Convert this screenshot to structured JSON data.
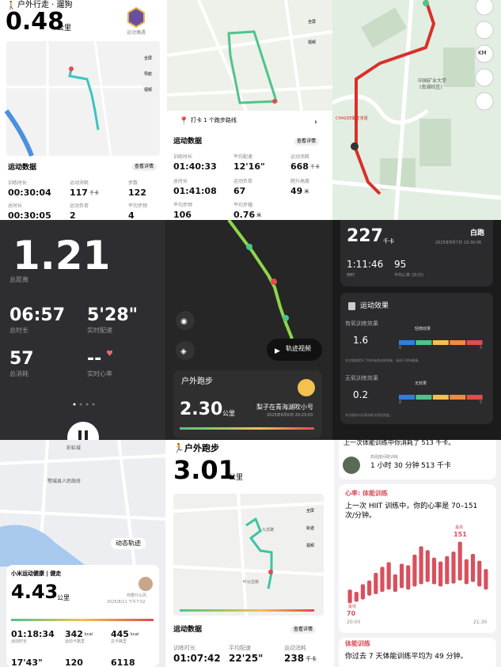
{
  "p1": {
    "title": "户外行走 · 遛狗",
    "distance": "0.48",
    "unit": "公里",
    "badge": "运动偶遇",
    "map_buttons": [
      "全屏",
      "导航",
      "视频"
    ],
    "section": "运动数据",
    "details": "查看详情",
    "stats": [
      {
        "label": "训练时长",
        "value": "00:30:04"
      },
      {
        "label": "运动消耗",
        "value": "117",
        "unit": "千卡"
      },
      {
        "label": "步数",
        "value": "122"
      },
      {
        "label": "总时长",
        "value": "00:30:05"
      },
      {
        "label": "运动负荷",
        "value": "2"
      },
      {
        "label": "平均步频",
        "value": "4"
      }
    ]
  },
  "p2": {
    "map_buttons": [
      "全屏",
      "视频"
    ],
    "checkin": "打卡 1 个跑步路线",
    "section": "运动数据",
    "details": "查看详情",
    "stats": [
      {
        "label": "训练时长",
        "value": "01:40:33"
      },
      {
        "label": "平均配速",
        "value": "12'16\""
      },
      {
        "label": "运动消耗",
        "value": "668",
        "unit": "千卡"
      },
      {
        "label": "总时长",
        "value": "01:41:08"
      },
      {
        "label": "运动负荷",
        "value": "67"
      },
      {
        "label": "爬升高度",
        "value": "49",
        "unit": "米"
      },
      {
        "label": "平均步频",
        "value": "106"
      },
      {
        "label": "平均步幅",
        "value": "0.76",
        "unit": "米"
      }
    ]
  },
  "p3": {
    "poi": "中国矿业大学",
    "poi_sub": "(南湖校区)",
    "shop": "CHAGEE霸王茶姬",
    "unit_button": "KM"
  },
  "p4": {
    "distance": "1.21",
    "distance_label": "总距离",
    "stats": [
      {
        "label": "总时长",
        "value": "06:57"
      },
      {
        "label": "实时配速",
        "value": "5'28\""
      },
      {
        "label": "总消耗",
        "value": "57"
      },
      {
        "label": "实时心率",
        "value": "--"
      }
    ]
  },
  "p5": {
    "video": "轨迹视频",
    "title": "户外跑步",
    "distance": "2.30",
    "unit": "公里",
    "user": "梨子在青海湖吹小号",
    "date": "2025年6月6日 20:23:03"
  },
  "p6": {
    "calories": "227",
    "cal_unit": "千卡",
    "name": "白跑",
    "date": "2025年8月7日 19:30:06",
    "duration": "1:11:46",
    "duration_label": "用时",
    "hr": "95",
    "hr_label": "平均心率 (次/分)",
    "effect_title": "运动效果",
    "aerobic": {
      "label": "有氧训练效果",
      "value": "1.6",
      "level": "轻微效果",
      "min": "0",
      "max": "5",
      "note": "本次锻炼提升了你的有氧训练效果，有助于保持健康。"
    },
    "anaerobic": {
      "label": "无氧训练效果",
      "value": "0.2",
      "level": "无效果",
      "min": "0",
      "max": "5",
      "note": "本次锻炼对无氧训练无明显改变。"
    }
  },
  "p7": {
    "places": [
      "彩虹城",
      "鄂城县人民政府"
    ],
    "track": "动态轨迹",
    "app": "小米运动健康 | 健走",
    "distance": "4.43",
    "unit": "公里",
    "user": "你要什么风",
    "date": "2025/8/11 下午7:52",
    "stats": [
      {
        "label": "运动时长",
        "value": "01:18:34"
      },
      {
        "label": "运动卡路里",
        "value": "342",
        "unit": "kcal"
      },
      {
        "label": "总卡路里",
        "value": "445",
        "unit": "kcal"
      },
      {
        "value": "17'43\""
      },
      {
        "value": "120"
      },
      {
        "value": "6118"
      }
    ]
  },
  "p8": {
    "title": "户外跑步",
    "distance": "3.01",
    "unit": "公里",
    "places": [
      "九龙路",
      "叶公古街"
    ],
    "map_buttons": [
      "全屏",
      "轨迹",
      "视频"
    ],
    "section": "运动数据",
    "details": "查看详情",
    "stats": [
      {
        "label": "训练时长",
        "value": "01:07:42"
      },
      {
        "label": "平均配速",
        "value": "22'25\""
      },
      {
        "label": "运动消耗",
        "value": "238",
        "unit": "千卡"
      }
    ]
  },
  "p9": {
    "summary": "上一次体能训练中你消耗了 513 千卡。",
    "workout": "高强度间歇训练",
    "time": "1 小时 30 分钟",
    "kcal": "513 千卡",
    "hr_title": "心率: 体能训练",
    "hr_text": "上一次 HIIT 训练中，你的心率是 70–151 次/分钟。",
    "chart": {
      "type": "bar",
      "color": "#d9505d",
      "ylim": [
        60,
        160
      ],
      "low": [
        70,
        72,
        75,
        80,
        82,
        85,
        88,
        85,
        90,
        88,
        92,
        95,
        98,
        95,
        92,
        95,
        96,
        100,
        95,
        98,
        92,
        88
      ],
      "high": [
        88,
        85,
        95,
        100,
        110,
        118,
        124,
        108,
        122,
        120,
        134,
        145,
        140,
        130,
        125,
        132,
        138,
        151,
        128,
        135,
        126,
        115
      ],
      "max_label": "最高",
      "max_value": "151",
      "min_label": "最低",
      "min_value": "70",
      "x_start": "20:00",
      "x_end": "21:30"
    },
    "train_title": "体能训练",
    "train_text": "你过去 7 天体能训练平均为 49 分钟。"
  }
}
